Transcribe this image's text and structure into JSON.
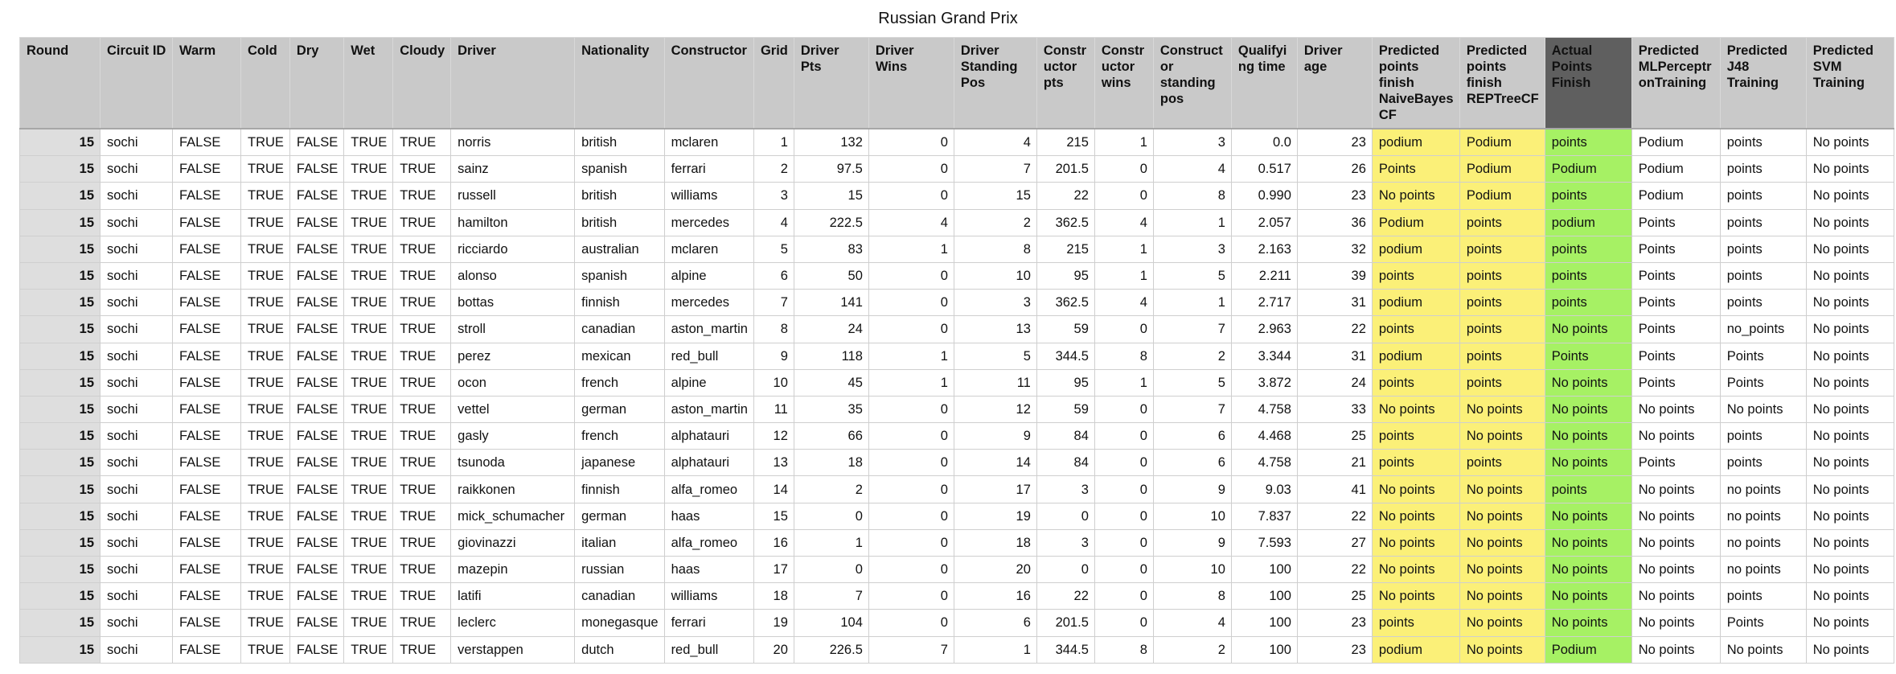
{
  "title": "Russian Grand Prix",
  "colors": {
    "header_bg": "#c9c9c9",
    "actual_header_bg": "#5f5f5f",
    "predicted_bg": "#fbf078",
    "actual_bg": "#a6f164",
    "round_bg": "#dedede"
  },
  "columns": [
    "Round",
    "Circuit ID",
    "Warm",
    "Cold",
    "Dry",
    "Wet",
    "Cloudy",
    "Driver",
    "Nationality",
    "Constructor",
    "Grid",
    "Driver Pts",
    "Driver Wins",
    "Driver Standing Pos",
    "Constr uctor pts",
    "Constr uctor wins",
    "Construct or standing pos",
    "Qualifyi ng time",
    "Driver age",
    "Predicted points finish NaiveBayes CF",
    "Predicted points finish REPTreeCF",
    "Actual Points Finish",
    "Predicted MLPerceptr onTraining",
    "Predicted J48 Training",
    "Predicted SVM Training"
  ],
  "rows": [
    [
      "15",
      "sochi",
      "FALSE",
      "TRUE",
      "FALSE",
      "TRUE",
      "TRUE",
      "norris",
      "british",
      "mclaren",
      "1",
      "132",
      "0",
      "4",
      "215",
      "1",
      "3",
      "0.0",
      "23",
      "podium",
      "Podium",
      "points",
      "Podium",
      "points",
      "No points"
    ],
    [
      "15",
      "sochi",
      "FALSE",
      "TRUE",
      "FALSE",
      "TRUE",
      "TRUE",
      "sainz",
      "spanish",
      "ferrari",
      "2",
      "97.5",
      "0",
      "7",
      "201.5",
      "0",
      "4",
      "0.517",
      "26",
      "Points",
      "Podium",
      "Podium",
      "Podium",
      "points",
      "No points"
    ],
    [
      "15",
      "sochi",
      "FALSE",
      "TRUE",
      "FALSE",
      "TRUE",
      "TRUE",
      "russell",
      "british",
      "williams",
      "3",
      "15",
      "0",
      "15",
      "22",
      "0",
      "8",
      "0.990",
      "23",
      "No points",
      "Podium",
      "points",
      "Podium",
      "points",
      "No points"
    ],
    [
      "15",
      "sochi",
      "FALSE",
      "TRUE",
      "FALSE",
      "TRUE",
      "TRUE",
      "hamilton",
      "british",
      "mercedes",
      "4",
      "222.5",
      "4",
      "2",
      "362.5",
      "4",
      "1",
      "2.057",
      "36",
      "Podium",
      "points",
      "podium",
      "Points",
      "points",
      "No points"
    ],
    [
      "15",
      "sochi",
      "FALSE",
      "TRUE",
      "FALSE",
      "TRUE",
      "TRUE",
      "ricciardo",
      "australian",
      "mclaren",
      "5",
      "83",
      "1",
      "8",
      "215",
      "1",
      "3",
      "2.163",
      "32",
      "podium",
      "points",
      "points",
      "Points",
      "points",
      "No points"
    ],
    [
      "15",
      "sochi",
      "FALSE",
      "TRUE",
      "FALSE",
      "TRUE",
      "TRUE",
      "alonso",
      "spanish",
      "alpine",
      "6",
      "50",
      "0",
      "10",
      "95",
      "1",
      "5",
      "2.211",
      "39",
      "points",
      "points",
      "points",
      "Points",
      "points",
      "No points"
    ],
    [
      "15",
      "sochi",
      "FALSE",
      "TRUE",
      "FALSE",
      "TRUE",
      "TRUE",
      "bottas",
      "finnish",
      "mercedes",
      "7",
      "141",
      "0",
      "3",
      "362.5",
      "4",
      "1",
      "2.717",
      "31",
      "podium",
      "points",
      "points",
      "Points",
      "points",
      "No points"
    ],
    [
      "15",
      "sochi",
      "FALSE",
      "TRUE",
      "FALSE",
      "TRUE",
      "TRUE",
      "stroll",
      "canadian",
      "aston_martin",
      "8",
      "24",
      "0",
      "13",
      "59",
      "0",
      "7",
      "2.963",
      "22",
      "points",
      "points",
      "No points",
      "Points",
      "no_points",
      "No points"
    ],
    [
      "15",
      "sochi",
      "FALSE",
      "TRUE",
      "FALSE",
      "TRUE",
      "TRUE",
      "perez",
      "mexican",
      "red_bull",
      "9",
      "118",
      "1",
      "5",
      "344.5",
      "8",
      "2",
      "3.344",
      "31",
      "podium",
      "points",
      "Points",
      "Points",
      "Points",
      "No points"
    ],
    [
      "15",
      "sochi",
      "FALSE",
      "TRUE",
      "FALSE",
      "TRUE",
      "TRUE",
      "ocon",
      "french",
      "alpine",
      "10",
      "45",
      "1",
      "11",
      "95",
      "1",
      "5",
      "3.872",
      "24",
      "points",
      "points",
      "No points",
      "Points",
      "Points",
      "No points"
    ],
    [
      "15",
      "sochi",
      "FALSE",
      "TRUE",
      "FALSE",
      "TRUE",
      "TRUE",
      "vettel",
      "german",
      "aston_martin",
      "11",
      "35",
      "0",
      "12",
      "59",
      "0",
      "7",
      "4.758",
      "33",
      "No points",
      "No points",
      "No points",
      "No points",
      "No points",
      "No points"
    ],
    [
      "15",
      "sochi",
      "FALSE",
      "TRUE",
      "FALSE",
      "TRUE",
      "TRUE",
      "gasly",
      "french",
      "alphatauri",
      "12",
      "66",
      "0",
      "9",
      "84",
      "0",
      "6",
      "4.468",
      "25",
      "points",
      "No points",
      "No points",
      "No points",
      "points",
      "No points"
    ],
    [
      "15",
      "sochi",
      "FALSE",
      "TRUE",
      "FALSE",
      "TRUE",
      "TRUE",
      "tsunoda",
      "japanese",
      "alphatauri",
      "13",
      "18",
      "0",
      "14",
      "84",
      "0",
      "6",
      "4.758",
      "21",
      "points",
      "points",
      "No points",
      "Points",
      "points",
      "No points"
    ],
    [
      "15",
      "sochi",
      "FALSE",
      "TRUE",
      "FALSE",
      "TRUE",
      "TRUE",
      "raikkonen",
      "finnish",
      "alfa_romeo",
      "14",
      "2",
      "0",
      "17",
      "3",
      "0",
      "9",
      "9.03",
      "41",
      "No points",
      "No points",
      "points",
      "No points",
      "no points",
      "No points"
    ],
    [
      "15",
      "sochi",
      "FALSE",
      "TRUE",
      "FALSE",
      "TRUE",
      "TRUE",
      "mick_schumacher",
      "german",
      "haas",
      "15",
      "0",
      "0",
      "19",
      "0",
      "0",
      "10",
      "7.837",
      "22",
      "No points",
      "No points",
      "No points",
      "No points",
      "no points",
      "No points"
    ],
    [
      "15",
      "sochi",
      "FALSE",
      "TRUE",
      "FALSE",
      "TRUE",
      "TRUE",
      "giovinazzi",
      "italian",
      "alfa_romeo",
      "16",
      "1",
      "0",
      "18",
      "3",
      "0",
      "9",
      "7.593",
      "27",
      "No points",
      "No points",
      "No points",
      "No points",
      "no points",
      "No points"
    ],
    [
      "15",
      "sochi",
      "FALSE",
      "TRUE",
      "FALSE",
      "TRUE",
      "TRUE",
      "mazepin",
      "russian",
      "haas",
      "17",
      "0",
      "0",
      "20",
      "0",
      "0",
      "10",
      "100",
      "22",
      "No points",
      "No points",
      "No points",
      "No points",
      "no points",
      "No points"
    ],
    [
      "15",
      "sochi",
      "FALSE",
      "TRUE",
      "FALSE",
      "TRUE",
      "TRUE",
      "latifi",
      "canadian",
      "williams",
      "18",
      "7",
      "0",
      "16",
      "22",
      "0",
      "8",
      "100",
      "25",
      "No points",
      "No points",
      "No points",
      "No points",
      "points",
      "No points"
    ],
    [
      "15",
      "sochi",
      "FALSE",
      "TRUE",
      "FALSE",
      "TRUE",
      "TRUE",
      "leclerc",
      "monegasque",
      "ferrari",
      "19",
      "104",
      "0",
      "6",
      "201.5",
      "0",
      "4",
      "100",
      "23",
      "points",
      "No points",
      "No points",
      "No points",
      "Points",
      "No points"
    ],
    [
      "15",
      "sochi",
      "FALSE",
      "TRUE",
      "FALSE",
      "TRUE",
      "TRUE",
      "verstappen",
      "dutch",
      "red_bull",
      "20",
      "226.5",
      "7",
      "1",
      "344.5",
      "8",
      "2",
      "100",
      "23",
      "podium",
      "No points",
      "Podium",
      "No points",
      "No points",
      "No points"
    ]
  ]
}
